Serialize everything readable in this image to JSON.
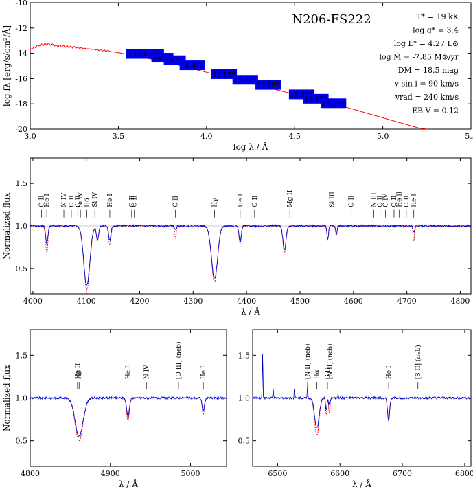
{
  "chart_data": [
    {
      "type": "line",
      "title": "N206-FS222",
      "xlabel": "log λ / Å",
      "ylabel": "log fλ [erg/s/cm²/Å]",
      "xlim": [
        3.0,
        5.5
      ],
      "ylim": [
        -20,
        -10
      ],
      "xticks": [
        "3.0",
        "3.5",
        "4.0",
        "4.5",
        "5.0",
        "5.5"
      ],
      "yticks": [
        "-10",
        "-12",
        "-14",
        "-16",
        "-18",
        "-20"
      ],
      "params": [
        "T* = 19 kK",
        "log g* = 3.4",
        "log L* = 4.27 L⊙",
        "log Ṁ = -7.85 M⊙/yr",
        "DM = 18.5 mag",
        "v sin i = 90 km/s",
        "vrad = 240 km/s",
        "EB-V = 0.12"
      ],
      "model_sed": [
        [
          3.0,
          -13.7
        ],
        [
          3.05,
          -13.35
        ],
        [
          3.1,
          -13.25
        ],
        [
          3.15,
          -13.4
        ],
        [
          3.2,
          -13.45
        ],
        [
          3.3,
          -13.6
        ],
        [
          3.4,
          -13.75
        ],
        [
          3.5,
          -13.95
        ],
        [
          3.6,
          -14.2
        ],
        [
          3.7,
          -14.5
        ],
        [
          3.8,
          -14.8
        ],
        [
          3.9,
          -15.15
        ],
        [
          4.0,
          -15.5
        ],
        [
          4.1,
          -15.85
        ],
        [
          4.2,
          -16.2
        ],
        [
          4.3,
          -16.55
        ],
        [
          4.4,
          -16.9
        ],
        [
          4.5,
          -17.25
        ],
        [
          4.6,
          -17.6
        ],
        [
          4.7,
          -17.95
        ],
        [
          4.8,
          -18.3
        ],
        [
          4.9,
          -18.7
        ],
        [
          5.0,
          -19.1
        ],
        [
          5.1,
          -19.5
        ],
        [
          5.2,
          -19.9
        ],
        [
          5.25,
          -20.0
        ]
      ],
      "photometry_boxes": [
        {
          "label": "13.14.545",
          "x": 3.65,
          "y": -14.05
        },
        {
          "label": "14.77",
          "x": 3.75,
          "y": -14.35
        },
        {
          "label": "14.79",
          "x": 3.82,
          "y": -14.55
        },
        {
          "label": "14.912",
          "x": 3.92,
          "y": -14.95
        },
        {
          "label": "15.123",
          "x": 4.1,
          "y": -15.65
        },
        {
          "label": "15.223",
          "x": 4.22,
          "y": -16.1
        },
        {
          "label": "15.163",
          "x": 4.35,
          "y": -16.5
        },
        {
          "label": "15.311",
          "x": 4.54,
          "y": -17.25
        },
        {
          "label": "15.279",
          "x": 4.62,
          "y": -17.6
        },
        {
          "label": "15.279",
          "x": 4.72,
          "y": -17.95
        }
      ]
    },
    {
      "type": "line",
      "xlabel": "λ / Å",
      "ylabel": "Normalized flux",
      "xlim": [
        3995,
        4820
      ],
      "ylim": [
        0.2,
        1.8
      ],
      "xticks": [
        "4000",
        "4100",
        "4200",
        "4300",
        "4400",
        "4500",
        "4600",
        "4700",
        "4800"
      ],
      "yticks": [
        "0.5",
        "1.0",
        "1.5"
      ],
      "lines": [
        {
          "label": "O II",
          "x": 4016
        },
        {
          "label": "He I",
          "x": 4026
        },
        {
          "label": "N IV",
          "x": 4058
        },
        {
          "label": "O II",
          "x": 4072
        },
        {
          "label": "O II",
          "x": 4084
        },
        {
          "label": "Si IV",
          "x": 4089
        },
        {
          "label": "Hδ",
          "x": 4101
        },
        {
          "label": "Si IV",
          "x": 4116
        },
        {
          "label": "He I",
          "x": 4144
        },
        {
          "label": "O II",
          "x": 4185
        },
        {
          "label": "O II",
          "x": 4190
        },
        {
          "label": "C II",
          "x": 4267
        },
        {
          "label": "Hγ",
          "x": 4340
        },
        {
          "label": "He I",
          "x": 4388
        },
        {
          "label": "O II",
          "x": 4415
        },
        {
          "label": "Mg II",
          "x": 4481
        },
        {
          "label": "Si III",
          "x": 4560
        },
        {
          "label": "O II",
          "x": 4596
        },
        {
          "label": "N III",
          "x": 4638
        },
        {
          "label": "O II",
          "x": 4650
        },
        {
          "label": "C IV",
          "x": 4660
        },
        {
          "label": "O II",
          "x": 4676
        },
        {
          "label": "He II",
          "x": 4686
        },
        {
          "label": "O II",
          "x": 4699
        },
        {
          "label": "He I",
          "x": 4713
        }
      ],
      "absorption": [
        {
          "x": 4026,
          "obs": 0.8,
          "model": 0.69,
          "w": 3
        },
        {
          "x": 4101,
          "obs": 0.3,
          "model": 0.25,
          "w": 8
        },
        {
          "x": 4121,
          "obs": 0.84,
          "model": 0.82,
          "w": 3
        },
        {
          "x": 4144,
          "obs": 0.83,
          "model": 0.77,
          "w": 3
        },
        {
          "x": 4267,
          "obs": 0.95,
          "model": 0.85,
          "w": 2
        },
        {
          "x": 4340,
          "obs": 0.38,
          "model": 0.34,
          "w": 8
        },
        {
          "x": 4388,
          "obs": 0.82,
          "model": 0.79,
          "w": 3
        },
        {
          "x": 4471,
          "obs": 0.72,
          "model": 0.69,
          "w": 4
        },
        {
          "x": 4552,
          "obs": 0.84,
          "model": 0.83,
          "w": 2
        },
        {
          "x": 4568,
          "obs": 0.9,
          "model": 0.89,
          "w": 2
        },
        {
          "x": 4713,
          "obs": 0.92,
          "model": 0.82,
          "w": 2
        }
      ]
    },
    {
      "type": "line",
      "xlabel": "λ / Å",
      "ylabel": "Normalized flux",
      "xlim": [
        4800,
        5045
      ],
      "ylim": [
        0.2,
        1.8
      ],
      "xticks": [
        "4800",
        "4900",
        "5000"
      ],
      "yticks": [
        "0.5",
        "1.0",
        "1.5"
      ],
      "lines": [
        {
          "label": "He II",
          "x": 4859
        },
        {
          "label": "Hβ",
          "x": 4861
        },
        {
          "label": "He I",
          "x": 4922
        },
        {
          "label": "N IV",
          "x": 4945
        },
        {
          "label": "[O III] (neb)",
          "x": 4985
        },
        {
          "label": "He I",
          "x": 5016
        }
      ],
      "absorption": [
        {
          "x": 4861,
          "obs": 0.55,
          "model": 0.5,
          "w": 7
        },
        {
          "x": 4922,
          "obs": 0.8,
          "model": 0.74,
          "w": 2.5
        },
        {
          "x": 5016,
          "obs": 0.85,
          "model": 0.8,
          "w": 2
        }
      ]
    },
    {
      "type": "line",
      "xlabel": "λ / Å",
      "xlim": [
        6460,
        6810
      ],
      "ylim": [
        0.2,
        1.8
      ],
      "xticks": [
        "6500",
        "6600",
        "6700",
        "6800"
      ],
      "yticks": [
        "0.5",
        "1.0",
        "1.5"
      ],
      "lines": [
        {
          "label": "[N II] (neb)",
          "x": 6548
        },
        {
          "label": "Hα",
          "x": 6563
        },
        {
          "label": "C II",
          "x": 6580
        },
        {
          "label": "[N II] (neb)",
          "x": 6584
        },
        {
          "label": "He I",
          "x": 6678
        },
        {
          "label": "[S II] (neb)",
          "x": 6725
        }
      ],
      "absorption": [
        {
          "x": 6563,
          "obs": 0.65,
          "model": 0.56,
          "w": 5
        },
        {
          "x": 6578,
          "obs": 0.85,
          "model": 0.8,
          "w": 1.5
        },
        {
          "x": 6583,
          "obs": 0.87,
          "model": 0.82,
          "w": 1.5
        },
        {
          "x": 6678,
          "obs": 0.75,
          "model": 0.73,
          "w": 2.5
        }
      ],
      "emission": [
        {
          "x": 6476,
          "peak": 1.55
        },
        {
          "x": 6493,
          "peak": 1.12
        },
        {
          "x": 6527,
          "peak": 1.12
        },
        {
          "x": 6548,
          "peak": 1.14
        },
        {
          "x": 6583,
          "peak": 1.08
        },
        {
          "x": 6597,
          "peak": 1.05
        }
      ]
    }
  ],
  "colors": {
    "observed": "#0000cc",
    "model": "#ff0000",
    "boxes": "#0000ee",
    "continuum": "#999999"
  }
}
